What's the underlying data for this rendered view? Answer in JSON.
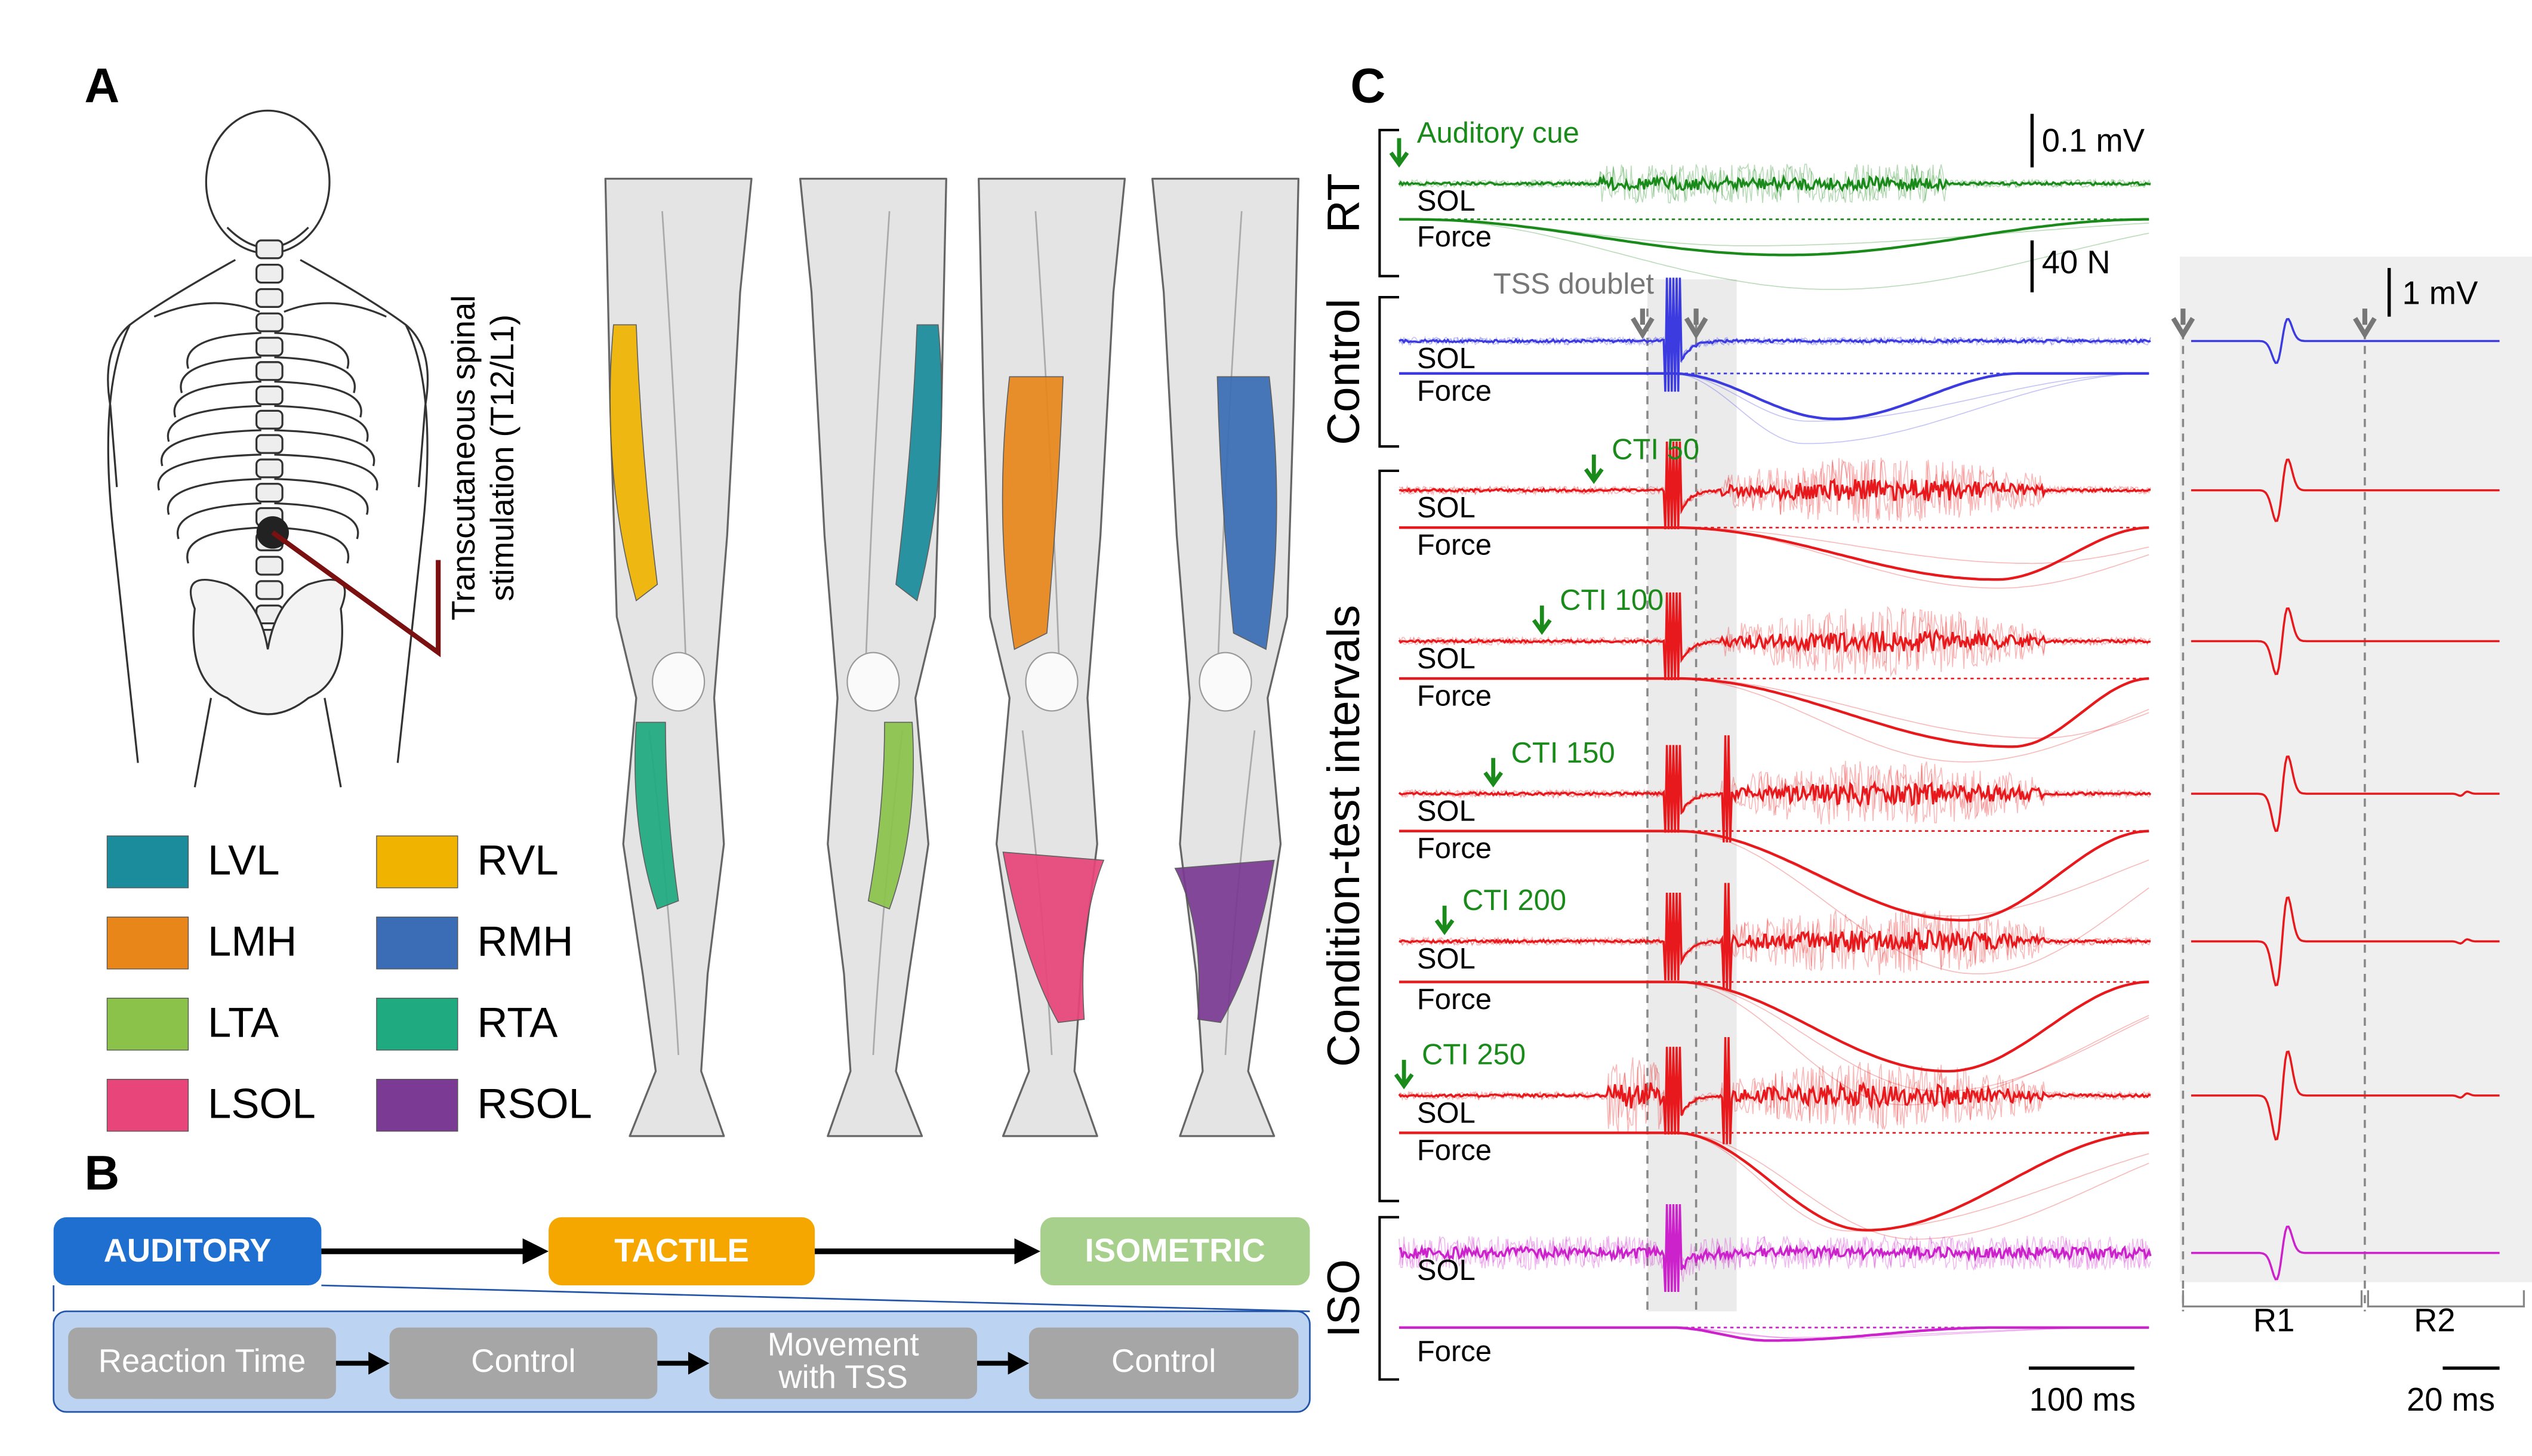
{
  "panel_a": {
    "label": "A",
    "stimulation_label": [
      "Transcutaneous spinal",
      "stimulation (T12/L1)"
    ],
    "legend": [
      {
        "name": "LVL",
        "color": "#1a8c9c"
      },
      {
        "name": "RVL",
        "color": "#f0b400"
      },
      {
        "name": "LMH",
        "color": "#e8861a"
      },
      {
        "name": "RMH",
        "color": "#3a6db5"
      },
      {
        "name": "LTA",
        "color": "#8bc34a"
      },
      {
        "name": "RTA",
        "color": "#1faa80"
      },
      {
        "name": "LSOL",
        "color": "#e8457a"
      },
      {
        "name": "RSOL",
        "color": "#7b3a94"
      }
    ]
  },
  "panel_b": {
    "label": "B",
    "conditions": [
      {
        "name": "AUDITORY",
        "color": "#1f6fd1"
      },
      {
        "name": "TACTILE",
        "color": "#f5a700"
      },
      {
        "name": "ISOMETRIC",
        "color": "#a8d08d"
      }
    ],
    "sequence": [
      [
        "Reaction Time"
      ],
      [
        "Control"
      ],
      [
        "Movement",
        "with TSS"
      ],
      [
        "Control"
      ]
    ]
  },
  "panel_c": {
    "label": "C",
    "groups": [
      "RT",
      "Control",
      "Condition-test intervals",
      "ISO"
    ],
    "tss_label": "TSS doublet",
    "rows": [
      {
        "cue": "Auditory cue",
        "sol": "SOL",
        "force": "Force",
        "color": "#1a8a1a"
      },
      {
        "sol": "SOL",
        "force": "Force",
        "color": "#3b3be0"
      },
      {
        "cue": "CTI 50",
        "sol": "SOL",
        "force": "Force",
        "color": "#e8191c"
      },
      {
        "cue": "CTI 100",
        "sol": "SOL",
        "force": "Force",
        "color": "#e8191c"
      },
      {
        "cue": "CTI 150",
        "sol": "SOL",
        "force": "Force",
        "color": "#e8191c"
      },
      {
        "cue": "CTI 200",
        "sol": "SOL",
        "force": "Force",
        "color": "#e8191c"
      },
      {
        "cue": "CTI 250",
        "sol": "SOL",
        "force": "Force",
        "color": "#e8191c"
      },
      {
        "sol": "SOL",
        "force": "Force",
        "color": "#cc22cc"
      }
    ],
    "scale_bars": {
      "emg_top": "0.1 mV",
      "force": "40 N",
      "emg_right": "1 mV",
      "time_left": "100 ms",
      "time_right": "20 ms"
    },
    "windows": [
      "R1",
      "R2"
    ]
  }
}
